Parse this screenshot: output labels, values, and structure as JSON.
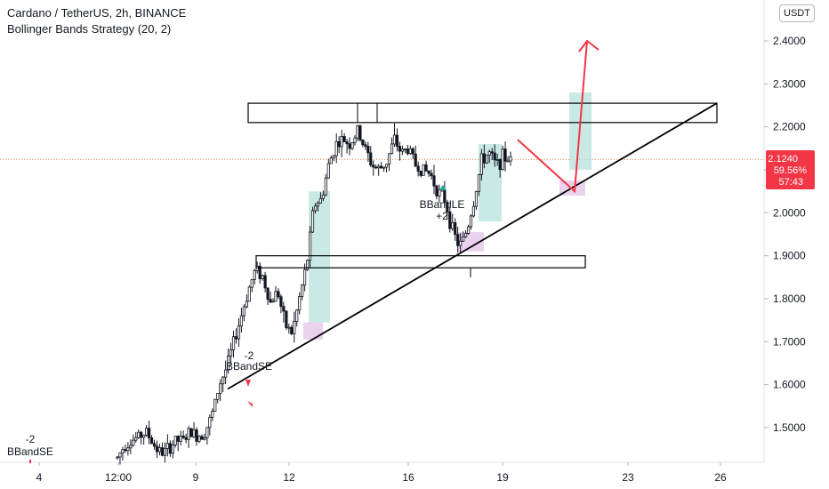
{
  "header": {
    "title": "Cardano / TetherUS, 2h, BINANCE",
    "subtitle": "Bollinger Bands Strategy (20, 2)",
    "currency": "USDT"
  },
  "price_label": {
    "price": "2.1240",
    "percent": "59.56%",
    "countdown": "57:43",
    "color": "#f23645"
  },
  "signals": [
    {
      "text_top": "-2",
      "text_bottom": "BBandSE"
    },
    {
      "text_top": "-2",
      "text_bottom": "BBandSE"
    },
    {
      "text_top": "BBandLE",
      "text_bottom": "+2"
    }
  ],
  "colors": {
    "up": "#131722",
    "down": "#131722",
    "trendline": "#000000",
    "arrow": "#f23645",
    "green_zone": "#b2dfdb",
    "pink_zone": "#e1bee7",
    "last_price_line": "#f57c4a"
  },
  "chart_data": {
    "type": "candlestick",
    "title": "Cardano / TetherUS, 2h, BINANCE",
    "y_ticks": [
      "2.4000",
      "2.3000",
      "2.2000",
      "2.1000",
      "2.0000",
      "1.9000",
      "1.8000",
      "1.7000",
      "1.6000",
      "1.5000"
    ],
    "x_ticks": [
      "4",
      "12:00",
      "9",
      "12",
      "16",
      "19",
      "23",
      "26"
    ],
    "ylim": [
      1.43,
      2.52
    ],
    "grid": false,
    "last_price": 2.124,
    "resistance_zone": [
      2.21,
      2.255
    ],
    "support_zone": [
      1.872,
      1.9
    ],
    "trendline": {
      "from": 1.59,
      "to": 2.255
    },
    "projection": {
      "dip": 2.05,
      "target": 2.4
    },
    "ohlc_path": [
      1.43,
      1.46,
      1.47,
      1.48,
      1.49,
      1.46,
      1.44,
      1.45,
      1.47,
      1.47,
      1.49,
      1.48,
      1.49,
      1.53,
      1.6,
      1.64,
      1.7,
      1.76,
      1.82,
      1.87,
      1.85,
      1.79,
      1.82,
      1.74,
      1.72,
      1.8,
      1.88,
      2.02,
      2.03,
      2.11,
      2.16,
      2.17,
      2.16,
      2.19,
      2.15,
      2.11,
      2.1,
      2.12,
      2.17,
      2.14,
      2.15,
      2.11,
      2.1,
      2.09,
      2.05,
      2.03,
      1.96,
      1.92,
      1.96,
      2.03,
      2.12,
      2.14,
      2.11,
      2.13,
      2.124
    ]
  }
}
